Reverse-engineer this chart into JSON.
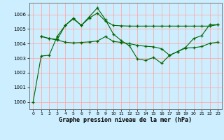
{
  "xlabel": "Graphe pression niveau de la mer (hPa)",
  "bg_color": "#cceeff",
  "grid_color": "#ffaaaa",
  "line_color": "#006600",
  "ylim": [
    999.5,
    1006.8
  ],
  "xlim": [
    -0.5,
    23.5
  ],
  "yticks": [
    1000,
    1001,
    1002,
    1003,
    1004,
    1005,
    1006
  ],
  "xticks": [
    0,
    1,
    2,
    3,
    4,
    5,
    6,
    7,
    8,
    9,
    10,
    11,
    12,
    13,
    14,
    15,
    16,
    17,
    18,
    19,
    20,
    21,
    22,
    23
  ],
  "series1_x": [
    0,
    1,
    2,
    3,
    4,
    5,
    6,
    7,
    8,
    9,
    10,
    11,
    12,
    13,
    14,
    15,
    16,
    17,
    18,
    19,
    20,
    21,
    22,
    23
  ],
  "series1_y": [
    1000.0,
    1003.15,
    1003.2,
    1004.5,
    1005.25,
    1005.7,
    1005.25,
    1005.85,
    1006.45,
    1005.65,
    1004.65,
    1004.2,
    1003.85,
    1002.95,
    1002.85,
    1003.05,
    1002.65,
    1003.2,
    1003.45,
    1003.75,
    1004.35,
    1004.55,
    1005.3,
    1005.3
  ],
  "series2_x": [
    1,
    2,
    3,
    4,
    5,
    6,
    7,
    8,
    9,
    10,
    11,
    12,
    13,
    14,
    15,
    16,
    17,
    18,
    19,
    20,
    21,
    22,
    23
  ],
  "series2_y": [
    1004.5,
    1004.35,
    1004.28,
    1005.25,
    1005.75,
    1005.25,
    1005.75,
    1006.1,
    1005.55,
    1005.25,
    1005.22,
    1005.2,
    1005.2,
    1005.2,
    1005.2,
    1005.2,
    1005.2,
    1005.2,
    1005.2,
    1005.2,
    1005.2,
    1005.2,
    1005.3
  ],
  "series3_x": [
    1,
    2,
    3,
    4,
    5,
    6,
    7,
    8,
    9,
    10,
    11,
    12,
    13,
    14,
    15,
    16,
    17,
    18,
    19,
    20,
    21,
    22,
    23
  ],
  "series3_y": [
    1004.5,
    1004.35,
    1004.25,
    1004.1,
    1004.05,
    1004.08,
    1004.12,
    1004.18,
    1004.48,
    1004.15,
    1004.08,
    1004.0,
    1003.88,
    1003.82,
    1003.78,
    1003.65,
    1003.2,
    1003.45,
    1003.7,
    1003.72,
    1003.8,
    1004.02,
    1004.1
  ]
}
